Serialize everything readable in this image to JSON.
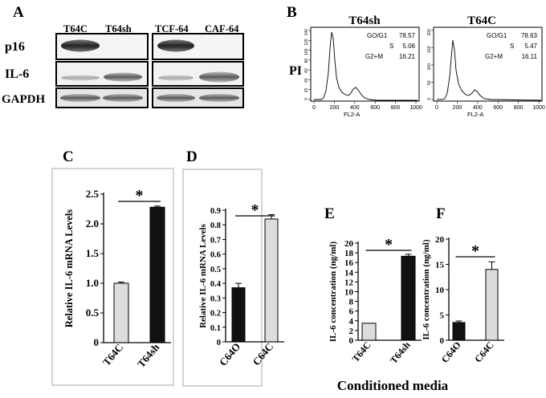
{
  "panel_letters": {
    "a": "A",
    "b": "B",
    "c": "C",
    "d": "D",
    "e": "E",
    "f": "F"
  },
  "blot": {
    "left_lanes": [
      "T64C",
      "T64sh"
    ],
    "right_lanes": [
      "TCF-64",
      "CAF-64"
    ],
    "rows": [
      "p16",
      "IL-6",
      "GAPDH"
    ]
  },
  "flow": {
    "side_label": "PI",
    "x_axis_label": "FL2-A",
    "x_ticks": [
      "0",
      "200",
      "400",
      "600",
      "800",
      "1000"
    ],
    "left": {
      "title": "T64sh",
      "y_ticks": [
        "140",
        "120",
        "100",
        "80",
        "60",
        "40",
        "20",
        "0"
      ],
      "stats": [
        {
          "phase": "GO/G1",
          "value": "78.57"
        },
        {
          "phase": "S",
          "value": "5.06"
        },
        {
          "phase": "G2+M",
          "value": "16.21"
        }
      ]
    },
    "right": {
      "title": "T64C",
      "y_ticks": [
        "200",
        "150",
        "100",
        "50",
        "0"
      ],
      "stats": [
        {
          "phase": "GO/G1",
          "value": "78.63"
        },
        {
          "phase": "S",
          "value": "5.47"
        },
        {
          "phase": "G2+M",
          "value": "16.11"
        }
      ]
    }
  },
  "bottom_label": "Conditioned media",
  "significance_mark": "*",
  "colors": {
    "dark_bar": "#111111",
    "light_bar": "#dcdcdc",
    "frame": "#aaaaaa"
  },
  "chart_data": [
    {
      "panel": "C",
      "type": "bar",
      "categories": [
        "T64C",
        "T64sh"
      ],
      "values": [
        1.0,
        2.28
      ],
      "errors": [
        0.02,
        0.02
      ],
      "bar_colors": [
        "light",
        "dark"
      ],
      "ylabel": "Relative IL-6 mRNA Levels",
      "ylim": [
        0,
        2.5
      ],
      "y_ticks": [
        "0",
        "0.5",
        "1.0",
        "1.5",
        "2.0",
        "2.5"
      ],
      "significance": "*"
    },
    {
      "panel": "D",
      "type": "bar",
      "categories": [
        "C64O",
        "C64C"
      ],
      "values": [
        0.37,
        0.84
      ],
      "errors": [
        0.03,
        0.03
      ],
      "bar_colors": [
        "dark",
        "light"
      ],
      "ylabel": "Relative IL-6 mRNA Levels",
      "ylim": [
        0,
        0.9
      ],
      "y_ticks": [
        "0",
        "0.1",
        "0.2",
        "0.3",
        "0.4",
        "0.5",
        "0.6",
        "0.7",
        "0.8",
        "0.9"
      ],
      "significance": "*"
    },
    {
      "panel": "E",
      "type": "bar",
      "categories": [
        "T64C",
        "T64sh"
      ],
      "values": [
        3.5,
        17.3
      ],
      "errors": [
        0.0,
        0.4
      ],
      "bar_colors": [
        "light",
        "dark"
      ],
      "ylabel": "IL-6 concentration (ng/ml)",
      "ylim": [
        0,
        20
      ],
      "y_ticks": [
        "0",
        "2",
        "4",
        "6",
        "8",
        "10",
        "12",
        "14",
        "16",
        "18",
        "20"
      ],
      "significance": "*"
    },
    {
      "panel": "F",
      "type": "bar",
      "categories": [
        "C64O",
        "C64C"
      ],
      "values": [
        3.5,
        14.0
      ],
      "errors": [
        0.3,
        1.5
      ],
      "bar_colors": [
        "dark",
        "light"
      ],
      "ylabel": "IL-6 concentration (ng/ml)",
      "ylim": [
        0,
        20
      ],
      "y_ticks": [
        "0",
        "5",
        "10",
        "15",
        "20"
      ],
      "significance": "*"
    }
  ]
}
